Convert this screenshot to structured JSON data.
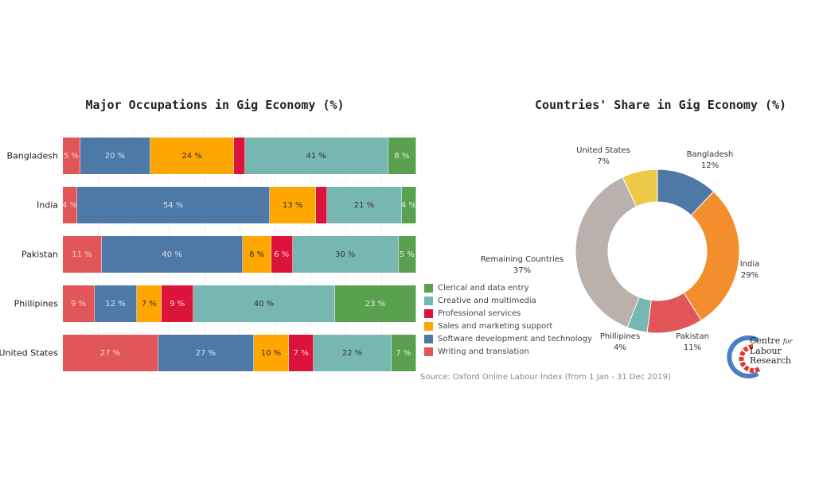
{
  "chart_data": [
    {
      "type": "bar",
      "orientation": "horizontal-stacked-100",
      "title": "Major Occupations in Gig Economy (%)",
      "categories": [
        "Bangladesh",
        "India",
        "Pakistan",
        "Phillipines",
        "United States"
      ],
      "series": [
        {
          "name": "Writing and translation",
          "color": "#e15759",
          "values": [
            5,
            4,
            11,
            9,
            27
          ],
          "labels": [
            "5 %",
            "4 %",
            "11 %",
            "9 %",
            "27 %"
          ],
          "text_color": "#f5d0d0"
        },
        {
          "name": "Software development and technology",
          "color": "#4e79a7",
          "values": [
            20,
            54,
            40,
            12,
            27
          ],
          "labels": [
            "20 %",
            "54 %",
            "40 %",
            "12 %",
            "27 %"
          ],
          "text_color": "#d6e2f0"
        },
        {
          "name": "Sales and marketing support",
          "color": "#ffa600",
          "values": [
            24,
            13,
            8,
            7,
            10
          ],
          "labels": [
            "24 %",
            "13 %",
            "8 %",
            "7 %",
            "10 %"
          ],
          "text_color": "#333333"
        },
        {
          "name": "Professional services",
          "color": "#dc143c",
          "values": [
            3,
            3,
            6,
            9,
            7
          ],
          "labels": [
            "",
            "",
            "6 %",
            "9 %",
            "7 %"
          ],
          "text_color": "#f8d0d8"
        },
        {
          "name": "Creative and multimedia",
          "color": "#76b7b2",
          "values": [
            41,
            21,
            30,
            40,
            22
          ],
          "labels": [
            "41 %",
            "21 %",
            "30 %",
            "40 %",
            "22 %"
          ],
          "text_color": "#333333"
        },
        {
          "name": "Clerical and data entry",
          "color": "#59a14f",
          "values": [
            8,
            4,
            5,
            23,
            7
          ],
          "labels": [
            "8 %",
            "4 %",
            "5 %",
            "23 %",
            "7 %"
          ],
          "text_color": "#e0f0dc"
        }
      ],
      "legend_order": [
        "Clerical and data entry",
        "Creative and multimedia",
        "Professional services",
        "Sales and marketing support",
        "Software development and technology",
        "Writing and translation"
      ],
      "legend_placement": "bottom-right",
      "source": "Source: Oxford Online Labour Index (from 1 Jan - 31 Dec 2019)"
    },
    {
      "type": "pie",
      "variant": "donut",
      "title": "Countries' Share in Gig Economy (%)",
      "slices": [
        {
          "name": "Bangladesh",
          "value": 12,
          "label": "12%",
          "color": "#4e79a7"
        },
        {
          "name": "India",
          "value": 29,
          "label": "29%",
          "color": "#f28e2b"
        },
        {
          "name": "Pakistan",
          "value": 11,
          "label": "11%",
          "color": "#e15759"
        },
        {
          "name": "Phillipines",
          "value": 4,
          "label": "4%",
          "color": "#76b7b2"
        },
        {
          "name": "Remaining Countries",
          "value": 37,
          "label": "37%",
          "color": "#bab0ac"
        },
        {
          "name": "United States",
          "value": 7,
          "label": "7%",
          "color": "#edc948"
        }
      ]
    }
  ],
  "logo": {
    "line1": "Centre",
    "line1_small": "for",
    "line2": "Labour",
    "line3": "Research"
  }
}
